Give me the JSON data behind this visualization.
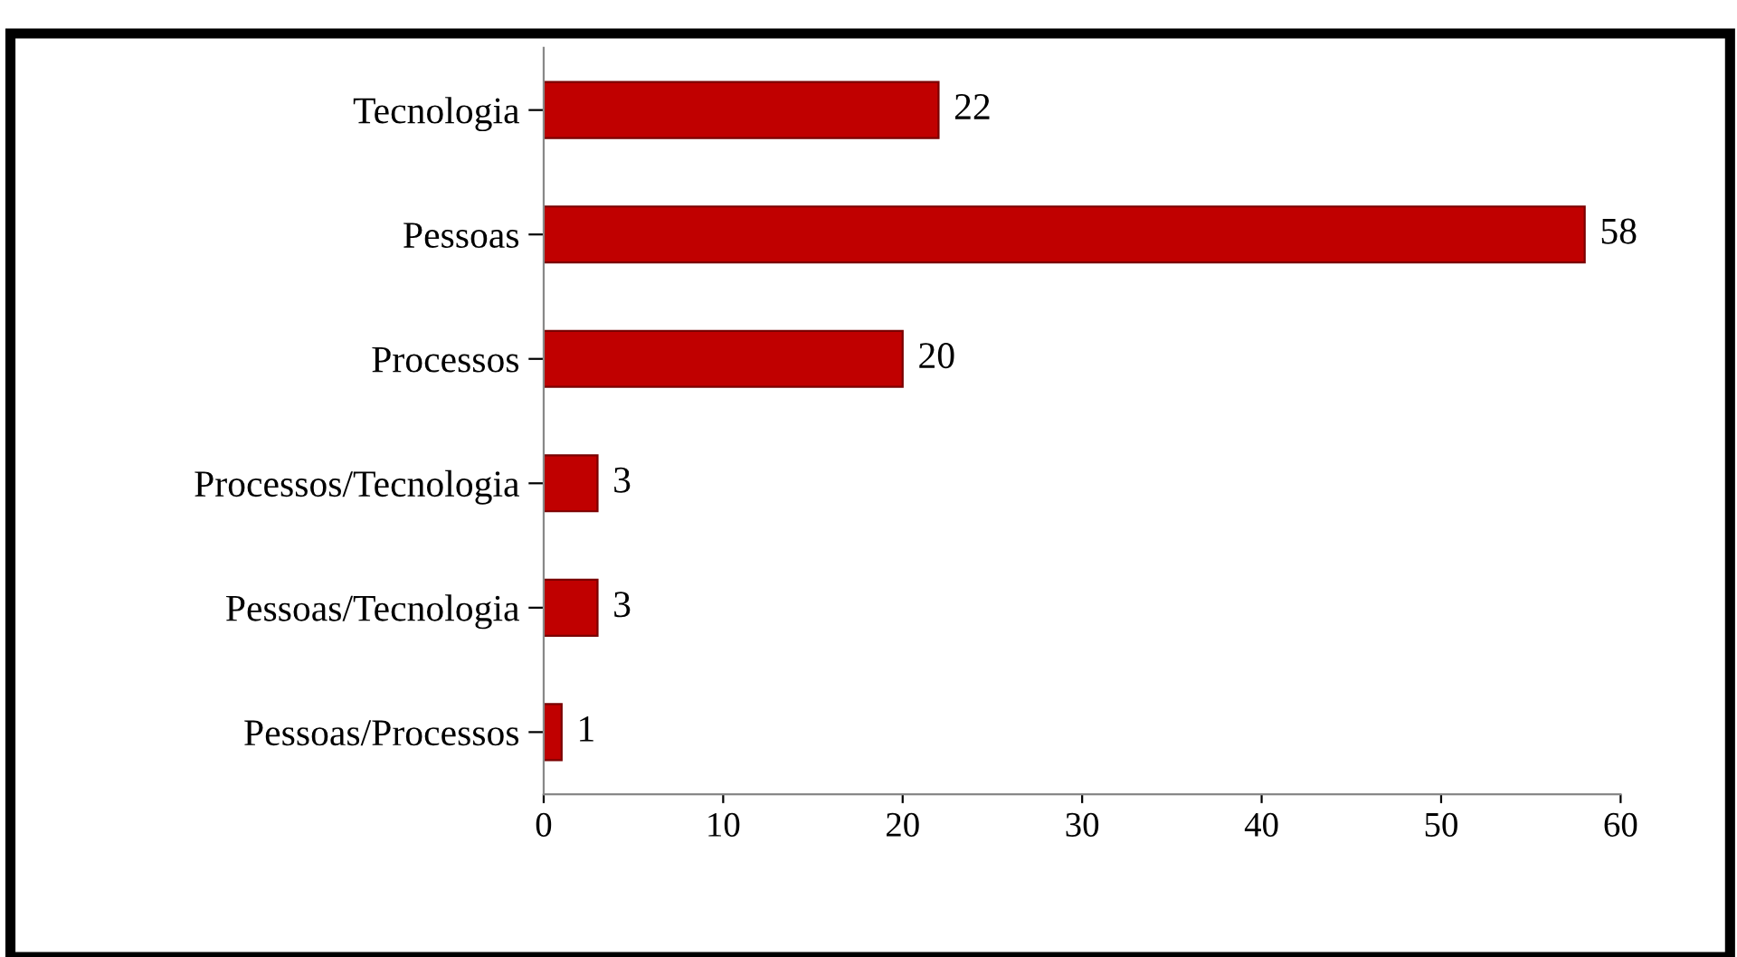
{
  "chart_data": {
    "type": "bar",
    "orientation": "horizontal",
    "categories": [
      "Tecnologia",
      "Pessoas",
      "Processos",
      "Processos/Tecnologia",
      "Pessoas/Tecnologia",
      "Pessoas/Processos"
    ],
    "values": [
      22,
      58,
      20,
      3,
      3,
      1
    ],
    "color": "#c00000",
    "xlim": [
      0,
      60
    ],
    "xticks": [
      0,
      10,
      20,
      30,
      40,
      50,
      60
    ],
    "data_labels": true,
    "grid": false,
    "legend": false
  }
}
